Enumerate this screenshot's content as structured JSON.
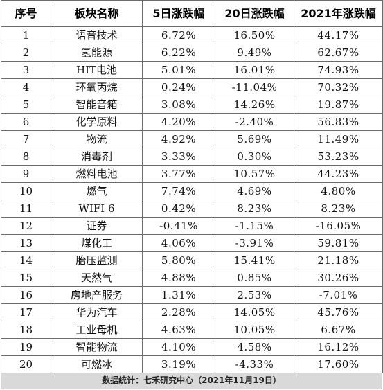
{
  "headers": [
    "序号",
    "板块名称",
    "5日涨跌幅",
    "20日涨跌幅",
    "2021年涨跌幅"
  ],
  "rows": [
    [
      "1",
      "语音技术",
      "6.72%",
      "16.50%",
      "44.17%"
    ],
    [
      "2",
      "氢能源",
      "6.22%",
      "9.49%",
      "62.67%"
    ],
    [
      "3",
      "HIT电池",
      "5.01%",
      "16.01%",
      "74.93%"
    ],
    [
      "4",
      "环氧丙烷",
      "0.24%",
      "-11.04%",
      "70.32%"
    ],
    [
      "5",
      "智能音箱",
      "3.08%",
      "14.26%",
      "19.87%"
    ],
    [
      "6",
      "化学原料",
      "4.20%",
      "-2.40%",
      "56.83%"
    ],
    [
      "7",
      "物流",
      "4.92%",
      "5.69%",
      "11.49%"
    ],
    [
      "8",
      "消毒剂",
      "3.33%",
      "0.30%",
      "53.23%"
    ],
    [
      "9",
      "燃料电池",
      "3.77%",
      "10.57%",
      "44.23%"
    ],
    [
      "10",
      "燃气",
      "7.74%",
      "4.69%",
      "4.80%"
    ],
    [
      "11",
      "WIFI 6",
      "0.42%",
      "8.23%",
      "8.23%"
    ],
    [
      "12",
      "证券",
      "-0.41%",
      "-1.15%",
      "-16.05%"
    ],
    [
      "13",
      "煤化工",
      "4.06%",
      "-3.91%",
      "59.81%"
    ],
    [
      "14",
      "胎压监测",
      "5.80%",
      "15.41%",
      "21.18%"
    ],
    [
      "15",
      "天然气",
      "4.88%",
      "0.85%",
      "30.26%"
    ],
    [
      "16",
      "房地产服务",
      "1.31%",
      "2.53%",
      "-7.01%"
    ],
    [
      "17",
      "华为汽车",
      "2.28%",
      "14.05%",
      "45.76%"
    ],
    [
      "18",
      "工业母机",
      "4.63%",
      "10.05%",
      "6.67%"
    ],
    [
      "19",
      "智能物流",
      "4.10%",
      "4.58%",
      "16.12%"
    ],
    [
      "20",
      "可燃冰",
      "3.19%",
      "-4.33%",
      "17.60%"
    ]
  ],
  "footer": "数据统计：七禾研究中心（2021年11月19日）"
}
